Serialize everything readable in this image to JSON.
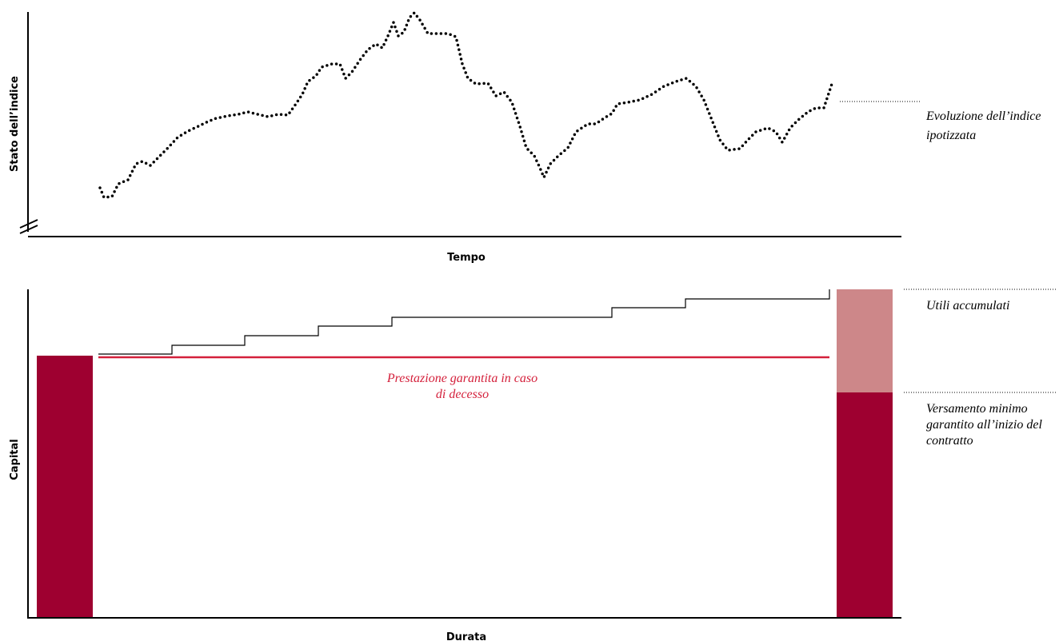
{
  "top_chart": {
    "y_axis_label": "Stato dell’indice",
    "x_axis_label": "Tempo",
    "series_label": [
      "Evoluzione dell’indice",
      "ipotizzata"
    ]
  },
  "bottom_chart": {
    "y_axis_label": "Capital",
    "x_axis_label": "Durata",
    "guarantee_label": [
      "Prestazione garantita in caso",
      "di decesso"
    ],
    "profit_label": [
      "Utili accumulati"
    ],
    "minimum_label": [
      "Versamento minimo",
      "garantito all’inizio del",
      "contratto"
    ]
  }
}
